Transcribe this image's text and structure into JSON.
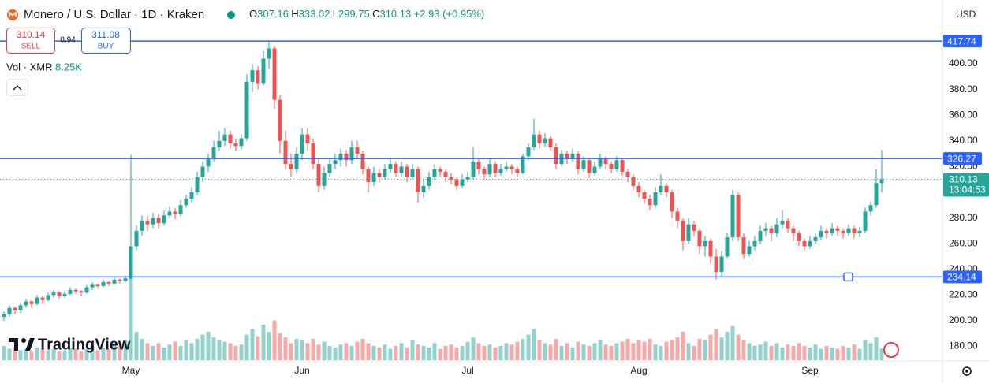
{
  "header": {
    "symbol": "Monero / U.S. Dollar · 1D · Kraken",
    "ohlc": [
      {
        "label": "O",
        "value": "307.16"
      },
      {
        "label": "H",
        "value": "333.02"
      },
      {
        "label": "L",
        "value": "299.75"
      },
      {
        "label": "C",
        "value": "310.13"
      }
    ],
    "change": "+2.93 (+0.95%)"
  },
  "trade": {
    "sell_price": "310.14",
    "sell": "SELL",
    "spread": "0.94",
    "buy_price": "311.08",
    "buy": "BUY"
  },
  "volume_label": "Vol · XMR",
  "volume_value": "8.25K",
  "logo": "TradingView",
  "currency": "USD",
  "chart_data": {
    "type": "candlestick",
    "colors": {
      "up": "#26a69a",
      "down": "#ef5350",
      "hline": "#2962ff"
    },
    "grid": false,
    "xlim": [
      -0.714,
      170
    ],
    "xticks": [
      {
        "value": 23,
        "label": "May"
      },
      {
        "value": 54,
        "label": "Jun"
      },
      {
        "value": 84,
        "label": "Jul"
      },
      {
        "value": 115,
        "label": "Aug"
      },
      {
        "value": 146,
        "label": "Sep"
      }
    ],
    "ylim": [
      169.3,
      449.7
    ],
    "yticks": [
      {
        "value": 180,
        "label": "180.00"
      },
      {
        "value": 200,
        "label": "200.00"
      },
      {
        "value": 220,
        "label": "220.00"
      },
      {
        "value": 240,
        "label": "240.00"
      },
      {
        "value": 260,
        "label": "260.00"
      },
      {
        "value": 280,
        "label": "280.00"
      },
      {
        "value": 300,
        "label": "300.00"
      },
      {
        "value": 320,
        "label": "320.00"
      },
      {
        "value": 340,
        "label": "340.00"
      },
      {
        "value": 360,
        "label": "360.00"
      },
      {
        "value": 380,
        "label": "380.00"
      },
      {
        "value": 400,
        "label": "400.00"
      }
    ],
    "hlines": [
      417.74,
      326.27,
      234.14
    ],
    "last_price": 310.13,
    "countdown": "13:04:53",
    "candles": [
      [
        203,
        207,
        200,
        205
      ],
      [
        205,
        212,
        203,
        210
      ],
      [
        210,
        211,
        205,
        208
      ],
      [
        208,
        214,
        206,
        212
      ],
      [
        212,
        217,
        210,
        215
      ],
      [
        215,
        216,
        210,
        213
      ],
      [
        213,
        220,
        212,
        218
      ],
      [
        218,
        219,
        213,
        216
      ],
      [
        216,
        222,
        215,
        220
      ],
      [
        220,
        224,
        218,
        222
      ],
      [
        222,
        223,
        217,
        219
      ],
      [
        219,
        223,
        218,
        221
      ],
      [
        221,
        226,
        220,
        224
      ],
      [
        224,
        225,
        221,
        223
      ],
      [
        223,
        224,
        219,
        222
      ],
      [
        222,
        228,
        221,
        226
      ],
      [
        226,
        230,
        224,
        228
      ],
      [
        228,
        229,
        225,
        227
      ],
      [
        227,
        232,
        226,
        230
      ],
      [
        230,
        231,
        227,
        229
      ],
      [
        229,
        234,
        228,
        232
      ],
      [
        232,
        233,
        229,
        231
      ],
      [
        231,
        235,
        230,
        233
      ],
      [
        233,
        329,
        232,
        258
      ],
      [
        258,
        274,
        255,
        270
      ],
      [
        270,
        282,
        266,
        278
      ],
      [
        278,
        282,
        270,
        275
      ],
      [
        275,
        284,
        272,
        280
      ],
      [
        280,
        283,
        272,
        276
      ],
      [
        276,
        286,
        274,
        282
      ],
      [
        282,
        289,
        280,
        285
      ],
      [
        285,
        288,
        279,
        283
      ],
      [
        283,
        294,
        281,
        290
      ],
      [
        290,
        298,
        288,
        295
      ],
      [
        295,
        304,
        292,
        300
      ],
      [
        300,
        316,
        298,
        312
      ],
      [
        312,
        324,
        308,
        320
      ],
      [
        320,
        330,
        316,
        326
      ],
      [
        326,
        340,
        324,
        335
      ],
      [
        335,
        348,
        332,
        340
      ],
      [
        340,
        350,
        336,
        345
      ],
      [
        345,
        348,
        334,
        338
      ],
      [
        338,
        342,
        332,
        336
      ],
      [
        336,
        345,
        333,
        342
      ],
      [
        342,
        392,
        340,
        386
      ],
      [
        386,
        400,
        378,
        395
      ],
      [
        395,
        398,
        380,
        385
      ],
      [
        385,
        410,
        383,
        404
      ],
      [
        404,
        418,
        396,
        412
      ],
      [
        412,
        414,
        365,
        372
      ],
      [
        372,
        376,
        330,
        340
      ],
      [
        340,
        348,
        318,
        322
      ],
      [
        322,
        330,
        312,
        318
      ],
      [
        318,
        335,
        315,
        330
      ],
      [
        330,
        350,
        325,
        345
      ],
      [
        345,
        350,
        332,
        338
      ],
      [
        338,
        342,
        318,
        322
      ],
      [
        322,
        326,
        300,
        305
      ],
      [
        305,
        320,
        302,
        315
      ],
      [
        315,
        326,
        312,
        322
      ],
      [
        322,
        330,
        318,
        325
      ],
      [
        325,
        334,
        320,
        330
      ],
      [
        330,
        333,
        320,
        325
      ],
      [
        325,
        340,
        322,
        335
      ],
      [
        335,
        340,
        326,
        330
      ],
      [
        330,
        332,
        314,
        318
      ],
      [
        318,
        320,
        300,
        308
      ],
      [
        308,
        320,
        305,
        315
      ],
      [
        315,
        318,
        308,
        312
      ],
      [
        312,
        322,
        310,
        318
      ],
      [
        318,
        326,
        315,
        322
      ],
      [
        322,
        324,
        312,
        315
      ],
      [
        315,
        324,
        312,
        320
      ],
      [
        320,
        322,
        308,
        312
      ],
      [
        312,
        322,
        310,
        318
      ],
      [
        318,
        320,
        292,
        300
      ],
      [
        300,
        310,
        296,
        305
      ],
      [
        305,
        316,
        302,
        312
      ],
      [
        312,
        322,
        310,
        318
      ],
      [
        318,
        320,
        312,
        316
      ],
      [
        316,
        318,
        308,
        312
      ],
      [
        312,
        315,
        306,
        310
      ],
      [
        310,
        312,
        302,
        305
      ],
      [
        305,
        314,
        303,
        310
      ],
      [
        310,
        316,
        308,
        312
      ],
      [
        312,
        335,
        310,
        324
      ],
      [
        324,
        326,
        314,
        318
      ],
      [
        318,
        320,
        310,
        314
      ],
      [
        314,
        326,
        312,
        322
      ],
      [
        322,
        324,
        312,
        315
      ],
      [
        315,
        322,
        313,
        318
      ],
      [
        318,
        324,
        316,
        320
      ],
      [
        320,
        322,
        314,
        318
      ],
      [
        318,
        320,
        312,
        315
      ],
      [
        315,
        330,
        314,
        328
      ],
      [
        328,
        338,
        325,
        335
      ],
      [
        335,
        357,
        333,
        345
      ],
      [
        345,
        348,
        334,
        338
      ],
      [
        338,
        346,
        335,
        342
      ],
      [
        342,
        344,
        332,
        335
      ],
      [
        335,
        338,
        318,
        322
      ],
      [
        322,
        333,
        320,
        330
      ],
      [
        330,
        332,
        322,
        326
      ],
      [
        326,
        334,
        324,
        330
      ],
      [
        330,
        332,
        314,
        318
      ],
      [
        318,
        328,
        316,
        325
      ],
      [
        325,
        327,
        311,
        315
      ],
      [
        315,
        324,
        313,
        320
      ],
      [
        320,
        330,
        318,
        326
      ],
      [
        326,
        328,
        318,
        322
      ],
      [
        322,
        324,
        315,
        318
      ],
      [
        318,
        328,
        316,
        325
      ],
      [
        325,
        327,
        313,
        316
      ],
      [
        316,
        318,
        308,
        312
      ],
      [
        312,
        314,
        302,
        305
      ],
      [
        305,
        308,
        296,
        300
      ],
      [
        300,
        302,
        291,
        295
      ],
      [
        295,
        298,
        286,
        290
      ],
      [
        290,
        304,
        288,
        300
      ],
      [
        300,
        314,
        298,
        305
      ],
      [
        305,
        307,
        296,
        300
      ],
      [
        300,
        302,
        280,
        285
      ],
      [
        285,
        288,
        272,
        278
      ],
      [
        278,
        280,
        255,
        262
      ],
      [
        262,
        280,
        260,
        275
      ],
      [
        275,
        278,
        266,
        270
      ],
      [
        270,
        272,
        252,
        258
      ],
      [
        258,
        266,
        250,
        262
      ],
      [
        262,
        264,
        244,
        250
      ],
      [
        250,
        256,
        232,
        238
      ],
      [
        238,
        254,
        234,
        250
      ],
      [
        250,
        268,
        248,
        265
      ],
      [
        265,
        302,
        262,
        298
      ],
      [
        298,
        300,
        262,
        265
      ],
      [
        265,
        268,
        248,
        252
      ],
      [
        252,
        262,
        250,
        258
      ],
      [
        258,
        266,
        255,
        262
      ],
      [
        262,
        274,
        260,
        270
      ],
      [
        270,
        276,
        266,
        272
      ],
      [
        272,
        274,
        262,
        268
      ],
      [
        268,
        280,
        265,
        275
      ],
      [
        275,
        286,
        272,
        278
      ],
      [
        278,
        280,
        268,
        272
      ],
      [
        272,
        274,
        262,
        268
      ],
      [
        268,
        270,
        258,
        262
      ],
      [
        262,
        264,
        255,
        258
      ],
      [
        258,
        266,
        256,
        262
      ],
      [
        262,
        268,
        260,
        265
      ],
      [
        265,
        274,
        263,
        270
      ],
      [
        270,
        272,
        264,
        268
      ],
      [
        268,
        276,
        266,
        272
      ],
      [
        272,
        274,
        266,
        270
      ],
      [
        270,
        272,
        264,
        268
      ],
      [
        268,
        275,
        266,
        272
      ],
      [
        272,
        274,
        264,
        268
      ],
      [
        268,
        273,
        265,
        270
      ],
      [
        270,
        288,
        268,
        285
      ],
      [
        285,
        293,
        282,
        290
      ],
      [
        290,
        318,
        288,
        307.2
      ],
      [
        307.16,
        333.02,
        299.75,
        310.13
      ]
    ],
    "volume": [
      10,
      8,
      9,
      7,
      8,
      6,
      9,
      8,
      7,
      8,
      6,
      7,
      9,
      8,
      6,
      8,
      10,
      7,
      9,
      8,
      12,
      10,
      14,
      62,
      20,
      15,
      12,
      10,
      12,
      9,
      11,
      13,
      10,
      14,
      12,
      15,
      18,
      20,
      16,
      14,
      13,
      12,
      10,
      11,
      18,
      22,
      17,
      25,
      20,
      28,
      19,
      16,
      12,
      15,
      14,
      12,
      15,
      11,
      13,
      10,
      9,
      11,
      12,
      10,
      13,
      15,
      12,
      10,
      9,
      11,
      8,
      10,
      12,
      9,
      14,
      11,
      10,
      9,
      12,
      8,
      10,
      11,
      9,
      10,
      13,
      16,
      12,
      10,
      11,
      9,
      10,
      12,
      11,
      13,
      15,
      18,
      22,
      14,
      12,
      11,
      15,
      10,
      12,
      9,
      13,
      11,
      10,
      12,
      14,
      11,
      10,
      12,
      13,
      15,
      12,
      14,
      13,
      15,
      11,
      10,
      13,
      14,
      16,
      20,
      12,
      10,
      15,
      14,
      18,
      22,
      16,
      20,
      24,
      18,
      14,
      12,
      10,
      11,
      13,
      10,
      12,
      9,
      11,
      10,
      12,
      10,
      9,
      11,
      8,
      10,
      9,
      8,
      10,
      9,
      11,
      8,
      14,
      12,
      16,
      8.25
    ]
  }
}
